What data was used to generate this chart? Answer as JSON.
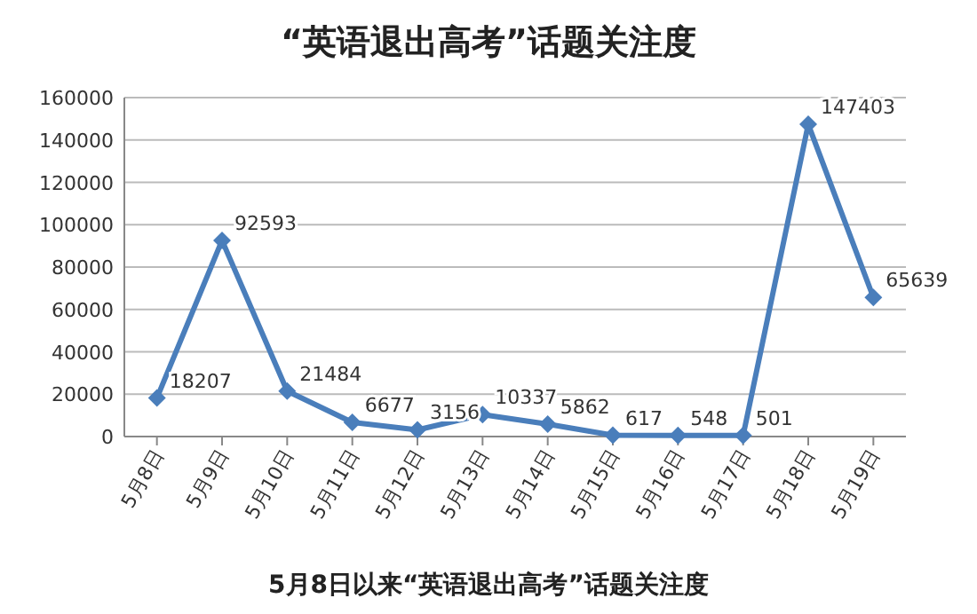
{
  "chart_data": {
    "type": "line",
    "title": "“英语退出高考”话题关注度",
    "categories": [
      "5月8日",
      "5月9日",
      "5月10日",
      "5月11日",
      "5月12日",
      "5月13日",
      "5月14日",
      "5月15日",
      "5月16日",
      "5月17日",
      "5月18日",
      "5月19日"
    ],
    "series": [
      {
        "color": "#4a7ebb",
        "values": [
          18207,
          92593,
          21484,
          6677,
          3156,
          10337,
          5862,
          617,
          548,
          501,
          147403,
          65639
        ]
      }
    ],
    "ylim": [
      0,
      160000
    ],
    "yticks": [
      0,
      20000,
      40000,
      60000,
      80000,
      100000,
      120000,
      140000,
      160000
    ],
    "grid": "y",
    "marker": "diamond",
    "line_style": "solid",
    "data_labels": true,
    "annotations": [
      "5月8日以来“英语退出高考”话题关注度"
    ]
  }
}
